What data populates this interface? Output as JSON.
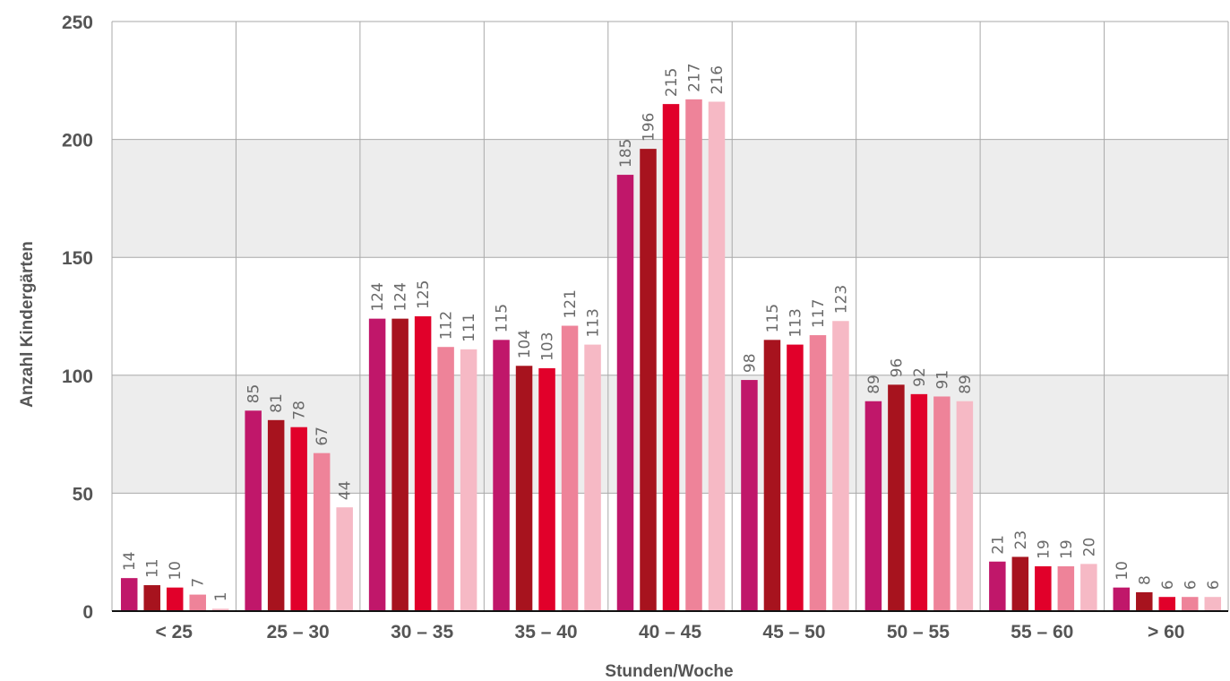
{
  "chart_data": {
    "type": "bar",
    "xlabel": "Stunden/Woche",
    "ylabel": "Anzahl Kindergärten",
    "ylim": [
      0,
      250
    ],
    "yticks": [
      0,
      50,
      100,
      150,
      200,
      250
    ],
    "grid": true,
    "categories": [
      "< 25",
      "25 – 30",
      "30 – 35",
      "35 – 40",
      "40 – 45",
      "45 – 50",
      "50 – 55",
      "55 – 60",
      "> 60"
    ],
    "series": [
      {
        "color": "#c0176a",
        "values": [
          14,
          85,
          124,
          115,
          185,
          98,
          89,
          21,
          10
        ]
      },
      {
        "color": "#a7131e",
        "values": [
          11,
          81,
          124,
          104,
          196,
          115,
          96,
          23,
          8
        ]
      },
      {
        "color": "#e1002a",
        "values": [
          10,
          78,
          125,
          103,
          215,
          113,
          92,
          19,
          6
        ]
      },
      {
        "color": "#ee8399",
        "values": [
          7,
          67,
          112,
          121,
          217,
          117,
          91,
          19,
          6
        ]
      },
      {
        "color": "#f6b9c5",
        "values": [
          1,
          44,
          111,
          113,
          216,
          123,
          89,
          20,
          6
        ]
      }
    ]
  }
}
